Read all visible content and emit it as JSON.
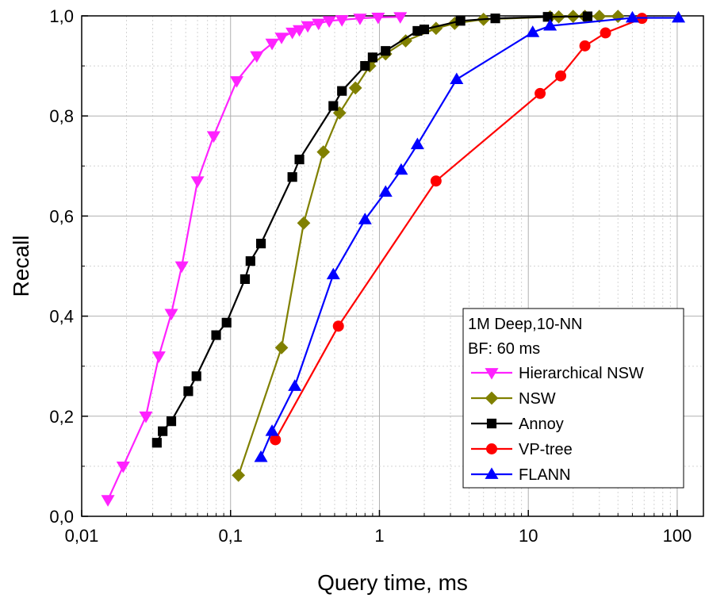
{
  "chart_data": {
    "type": "line",
    "xlabel": "Query time, ms",
    "ylabel": "Recall",
    "xscale": "log",
    "xlim": [
      0.01,
      150
    ],
    "ylim": [
      0,
      1
    ],
    "x_ticks": [
      0.01,
      0.1,
      1,
      10,
      100
    ],
    "x_tick_labels": [
      "0,01",
      "0,1",
      "1",
      "10",
      "100"
    ],
    "y_ticks": [
      0,
      0.2,
      0.4,
      0.6,
      0.8,
      1.0
    ],
    "y_tick_labels": [
      "0,0",
      "0,2",
      "0,4",
      "0,6",
      "0,8",
      "1,0"
    ],
    "grid": true,
    "legend": {
      "placement": "bottom-right",
      "header": [
        "1M Deep,10-NN",
        "BF: 60 ms"
      ]
    },
    "series": [
      {
        "name": "Hierarchical NSW",
        "color": "#ff22ff",
        "marker": "triangle-down",
        "points": [
          [
            0.015,
            0.033
          ],
          [
            0.019,
            0.1
          ],
          [
            0.027,
            0.2
          ],
          [
            0.033,
            0.32
          ],
          [
            0.04,
            0.405
          ],
          [
            0.047,
            0.5
          ],
          [
            0.06,
            0.67
          ],
          [
            0.077,
            0.76
          ],
          [
            0.11,
            0.87
          ],
          [
            0.15,
            0.92
          ],
          [
            0.19,
            0.945
          ],
          [
            0.22,
            0.957
          ],
          [
            0.26,
            0.967
          ],
          [
            0.29,
            0.972
          ],
          [
            0.33,
            0.98
          ],
          [
            0.39,
            0.985
          ],
          [
            0.46,
            0.99
          ],
          [
            0.56,
            0.992
          ],
          [
            0.74,
            0.995
          ],
          [
            0.98,
            0.997
          ],
          [
            1.38,
            0.998
          ]
        ]
      },
      {
        "name": "NSW",
        "color": "#808000",
        "marker": "diamond",
        "points": [
          [
            0.113,
            0.082
          ],
          [
            0.22,
            0.337
          ],
          [
            0.31,
            0.586
          ],
          [
            0.42,
            0.728
          ],
          [
            0.54,
            0.806
          ],
          [
            0.69,
            0.856
          ],
          [
            0.86,
            0.9
          ],
          [
            1.1,
            0.924
          ],
          [
            1.5,
            0.95
          ],
          [
            2.4,
            0.975
          ],
          [
            3.2,
            0.985
          ],
          [
            5.0,
            0.993
          ],
          [
            14,
            0.998
          ],
          [
            16,
            0.998
          ],
          [
            20,
            0.999
          ],
          [
            24,
            0.999
          ],
          [
            30,
            0.999
          ],
          [
            40,
            0.999
          ]
        ]
      },
      {
        "name": "Annoy",
        "color": "#000000",
        "marker": "square",
        "points": [
          [
            0.032,
            0.147
          ],
          [
            0.035,
            0.17
          ],
          [
            0.04,
            0.19
          ],
          [
            0.052,
            0.25
          ],
          [
            0.059,
            0.28
          ],
          [
            0.08,
            0.362
          ],
          [
            0.094,
            0.387
          ],
          [
            0.125,
            0.474
          ],
          [
            0.136,
            0.51
          ],
          [
            0.16,
            0.545
          ],
          [
            0.26,
            0.678
          ],
          [
            0.29,
            0.713
          ],
          [
            0.49,
            0.82
          ],
          [
            0.56,
            0.85
          ],
          [
            0.8,
            0.9
          ],
          [
            0.9,
            0.917
          ],
          [
            1.1,
            0.93
          ],
          [
            1.8,
            0.97
          ],
          [
            2.0,
            0.973
          ],
          [
            3.5,
            0.99
          ],
          [
            6.0,
            0.995
          ],
          [
            13.5,
            0.998
          ],
          [
            25,
            0.999
          ]
        ]
      },
      {
        "name": "VP-tree",
        "color": "#ff0000",
        "marker": "circle",
        "points": [
          [
            0.2,
            0.153
          ],
          [
            0.53,
            0.38
          ],
          [
            2.4,
            0.67
          ],
          [
            12,
            0.845
          ],
          [
            16.5,
            0.88
          ],
          [
            24,
            0.94
          ],
          [
            33,
            0.966
          ],
          [
            58,
            0.995
          ]
        ]
      },
      {
        "name": "FLANN",
        "color": "#0000ff",
        "marker": "triangle-up",
        "points": [
          [
            0.16,
            0.118
          ],
          [
            0.19,
            0.17
          ],
          [
            0.27,
            0.26
          ],
          [
            0.49,
            0.483
          ],
          [
            0.8,
            0.593
          ],
          [
            1.1,
            0.648
          ],
          [
            1.4,
            0.692
          ],
          [
            1.8,
            0.743
          ],
          [
            3.3,
            0.873
          ],
          [
            10.7,
            0.967
          ],
          [
            14,
            0.98
          ],
          [
            50,
            0.996
          ],
          [
            102,
            0.996
          ]
        ]
      }
    ]
  }
}
